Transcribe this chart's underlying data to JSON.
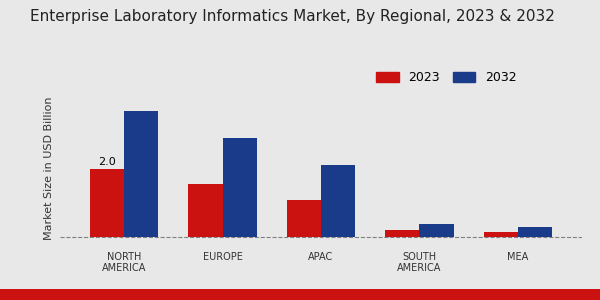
{
  "title": "Enterprise Laboratory Informatics Market, By Regional, 2023 & 2032",
  "categories": [
    "NORTH\nAMERICA",
    "EUROPE",
    "APAC",
    "SOUTH\nAMERICA",
    "MEA"
  ],
  "values_2023": [
    2.0,
    1.55,
    1.1,
    0.22,
    0.15
  ],
  "values_2032": [
    3.7,
    2.9,
    2.1,
    0.4,
    0.3
  ],
  "color_2023": "#cc1111",
  "color_2032": "#1a3a8a",
  "ylabel": "Market Size in USD Billion",
  "legend_2023": "2023",
  "legend_2032": "2032",
  "annotation_text": "2.0",
  "background_color": "#e8e8e8",
  "bar_width": 0.35,
  "title_fontsize": 11,
  "axis_label_fontsize": 8,
  "tick_fontsize": 7,
  "legend_fontsize": 9,
  "bottom_bar_color": "#cc1111"
}
